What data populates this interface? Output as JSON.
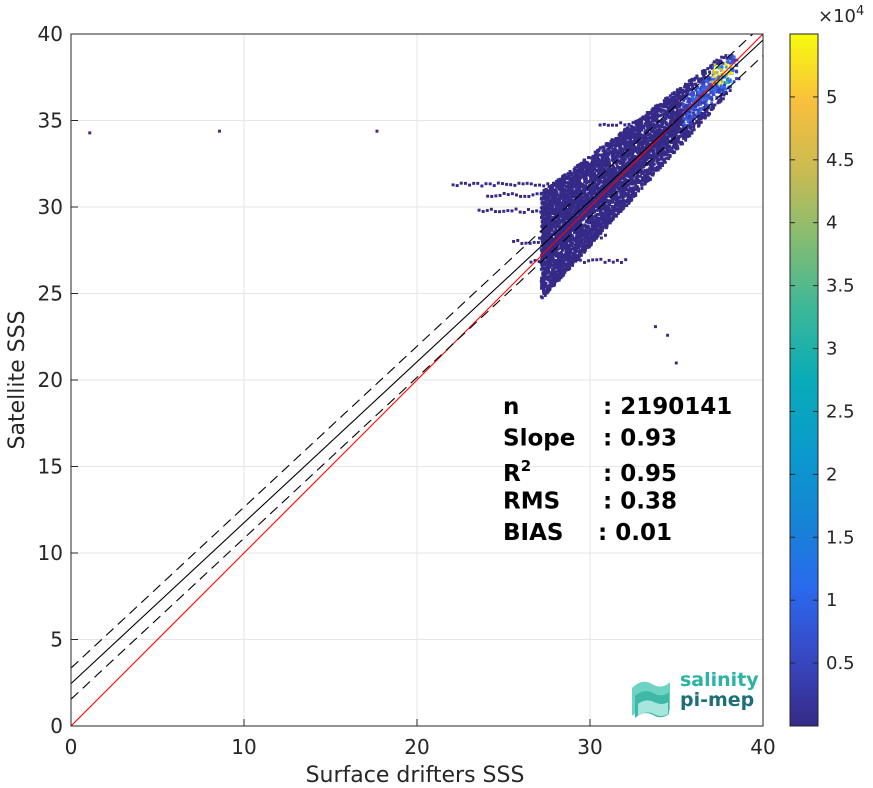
{
  "chart_data": {
    "type": "heatmap",
    "title": "",
    "xlabel": "Surface drifters SSS",
    "ylabel": "Satellite SSS",
    "xlim": [
      0,
      40
    ],
    "ylim": [
      0,
      40
    ],
    "x_ticks": [
      "0",
      "10",
      "20",
      "30",
      "40"
    ],
    "y_ticks": [
      "0",
      "5",
      "10",
      "15",
      "20",
      "25",
      "30",
      "35",
      "40"
    ],
    "grid": true,
    "colorbar": {
      "scale_label": "×10",
      "scale_exponent": "4",
      "range": [
        0,
        5.5
      ],
      "ticks": [
        "0.5",
        "1",
        "1.5",
        "2",
        "2.5",
        "3",
        "3.5",
        "4",
        "4.5",
        "5"
      ],
      "colormap": "parula"
    },
    "density_regions": [
      {
        "x_range": [
          27,
          38.5
        ],
        "y_range": [
          26,
          38.5
        ],
        "note": "main cluster along diagonal"
      },
      {
        "x_range": [
          35.5,
          38.5
        ],
        "y_range": [
          35,
          38.5
        ],
        "peak_value": 5.4
      }
    ],
    "reference_lines": [
      {
        "name": "identity",
        "color": "#ff0000",
        "slope": 1,
        "intercept": 0
      },
      {
        "name": "fit",
        "color": "#000000",
        "style": "solid",
        "slope": 0.93,
        "intercept": 2.45
      },
      {
        "name": "fit+",
        "color": "#000000",
        "style": "dashed",
        "slope": 0.93,
        "intercept": 3.35
      },
      {
        "name": "fit-",
        "color": "#000000",
        "style": "dashed",
        "slope": 0.93,
        "intercept": 1.55
      }
    ],
    "stats": [
      {
        "label": "n",
        "sup": "",
        "value": ": 2190141"
      },
      {
        "label": "Slope",
        "sup": "",
        "value": ": 0.93"
      },
      {
        "label": "R",
        "sup": "2",
        "value": ": 0.95"
      },
      {
        "label": "RMS",
        "sup": "",
        "value": ": 0.38"
      },
      {
        "label": "BIAS",
        "sup": "",
        "value": ": 0.01"
      }
    ]
  },
  "logo": {
    "line1": "salinity",
    "line2": "pi-mep",
    "color1": "#2bb3a3",
    "color2": "#1d6f7a"
  }
}
